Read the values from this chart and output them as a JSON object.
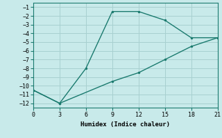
{
  "line1_x": [
    0,
    3,
    6,
    9,
    12,
    15,
    18,
    21
  ],
  "line1_y": [
    -10.5,
    -12,
    -8,
    -1.5,
    -1.5,
    -2.5,
    -4.5,
    -4.5
  ],
  "line2_x": [
    0,
    3,
    9,
    12,
    15,
    18,
    21
  ],
  "line2_y": [
    -10.5,
    -12,
    -9.5,
    -8.5,
    -7,
    -5.5,
    -4.5
  ],
  "color": "#1a7a6e",
  "bg_color": "#c8eaea",
  "grid_color": "#a8d0d0",
  "xlabel": "Humidex (Indice chaleur)",
  "xlim": [
    0,
    21
  ],
  "ylim": [
    -12.5,
    -0.5
  ],
  "xticks": [
    0,
    3,
    6,
    9,
    12,
    15,
    18,
    21
  ],
  "yticks": [
    -1,
    -2,
    -3,
    -4,
    -5,
    -6,
    -7,
    -8,
    -9,
    -10,
    -11,
    -12
  ]
}
